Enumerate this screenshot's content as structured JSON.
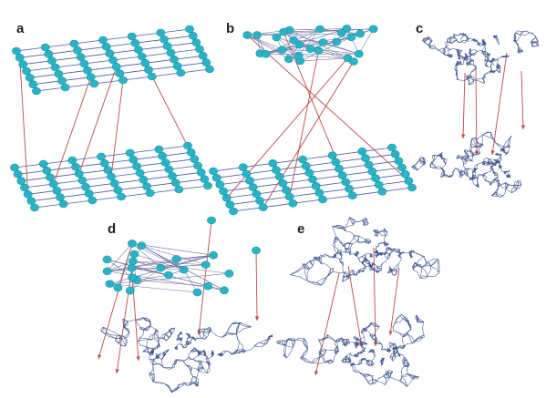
{
  "panels": [
    {
      "id": "a",
      "label": "a",
      "upper": "grid",
      "lower": "grid"
    },
    {
      "id": "b",
      "label": "b",
      "upper": "random",
      "lower": "grid"
    },
    {
      "id": "c",
      "label": "c",
      "upper": "road",
      "lower": "road"
    },
    {
      "id": "d",
      "label": "d",
      "upper": "random",
      "lower": "road"
    },
    {
      "id": "e",
      "label": "e",
      "upper": "road",
      "lower": "road"
    }
  ],
  "colors": {
    "node": "#2ab3c6",
    "intralayer_edge": "#4a5da3",
    "interlayer_edge": "#c0494a",
    "road": "#3f5590"
  }
}
